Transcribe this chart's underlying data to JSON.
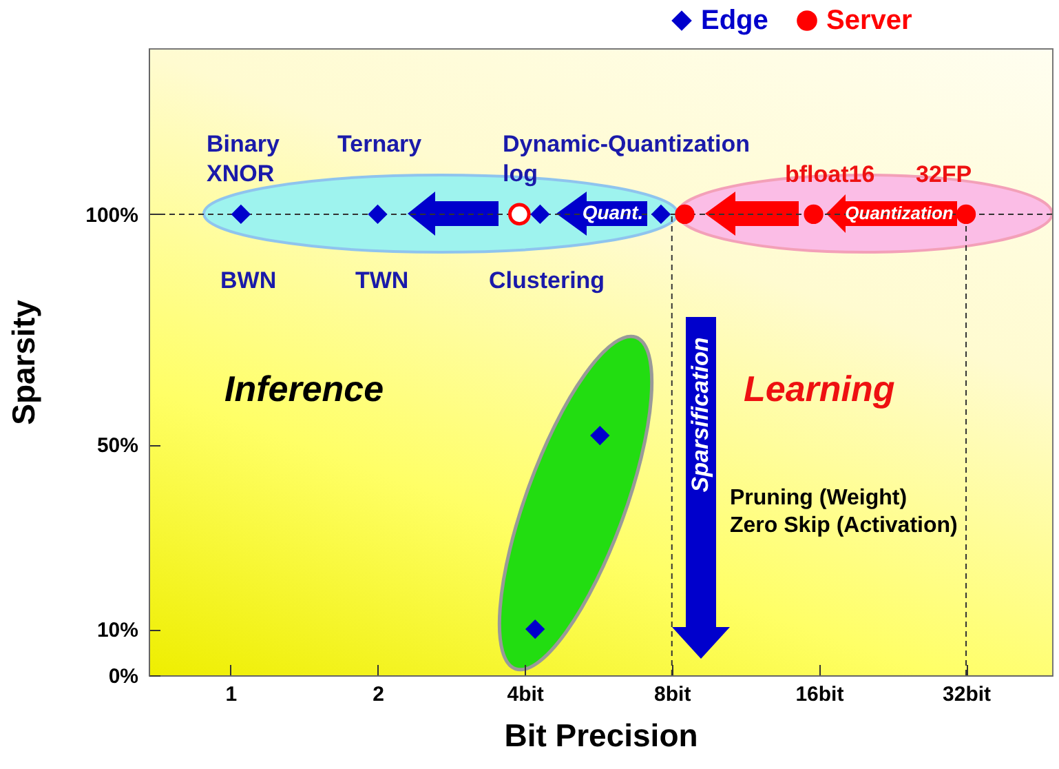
{
  "chart_data": {
    "type": "scatter",
    "xlabel": "Bit Precision",
    "ylabel": "Sparsity",
    "log": "x",
    "xlim": [
      0.68,
      48
    ],
    "ylim": [
      0,
      136
    ],
    "xticks": [
      1,
      2,
      {
        "value": 4,
        "label": "4bit"
      },
      {
        "value": 8,
        "label": "8bit"
      },
      {
        "value": 16,
        "label": "16bit"
      },
      {
        "value": 32,
        "label": "32bit"
      }
    ],
    "yticks": [
      {
        "value": 0,
        "label": "0%"
      },
      {
        "value": 10,
        "label": "10%"
      },
      {
        "value": 50,
        "label": "50%"
      },
      {
        "value": 100,
        "label": "100%"
      }
    ],
    "series": [
      {
        "name": "Edge",
        "color": "#0000cc",
        "marker": "diamond",
        "x": [
          1.05,
          2,
          4.3,
          7.6,
          4.2,
          5.7
        ],
        "values": [
          100,
          100,
          100,
          100,
          10,
          52
        ]
      },
      {
        "name": "Server",
        "color": "#ff0000",
        "marker": "circle",
        "x": [
          8.5,
          15.6,
          32
        ],
        "values": [
          100,
          100,
          100
        ]
      },
      {
        "color": "#ff0000",
        "marker": "circle",
        "x": [
          3.9
        ],
        "values": [
          100
        ]
      }
    ],
    "ref_lines": [
      {
        "axis": "y",
        "value": 100,
        "line_style": "dashed"
      },
      {
        "axis": "x",
        "value": 8,
        "line_style": "dashed"
      },
      {
        "axis": "x",
        "value": 32,
        "line_style": "dashed"
      }
    ],
    "annotations": [
      "Binary\nXNOR",
      "Ternary",
      "Dynamic-Quantization\nlog",
      "BWN",
      "TWN",
      "Clustering",
      "bfloat16",
      "32FP",
      "Inference",
      "Learning",
      "Pruning (Weight)\nZero Skip (Activation)",
      "Quant.",
      "Quantization",
      "Sparsification"
    ],
    "legend": "top right"
  }
}
